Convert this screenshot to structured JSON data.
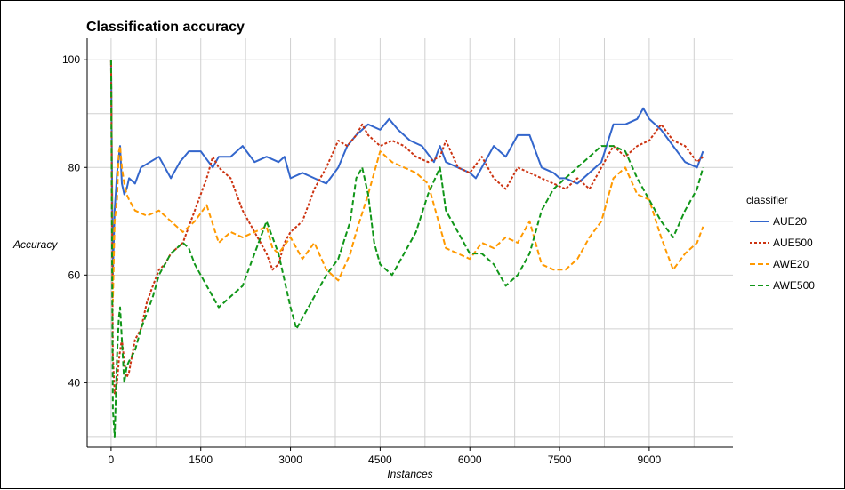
{
  "chart_data": {
    "type": "line",
    "title": "Classification accuracy",
    "xlabel": "Instances",
    "ylabel": "Accuracy",
    "xlim": [
      -400,
      10400
    ],
    "ylim": [
      28,
      104
    ],
    "x_ticks": [
      0,
      1500,
      3000,
      4500,
      6000,
      7500,
      9000
    ],
    "x_tick_labels": [
      "0",
      "1500",
      "3000",
      "4500",
      "6000",
      "7500",
      "9000"
    ],
    "y_ticks": [
      40,
      60,
      80,
      100
    ],
    "y_tick_labels": [
      "40",
      "60",
      "80",
      "100"
    ],
    "grid": true,
    "legend_title": "classifier",
    "legend_position": "right",
    "series": [
      {
        "name": "AUE20",
        "color": "#3366cc",
        "dash": "solid",
        "x": [
          0,
          30,
          60,
          100,
          130,
          150,
          180,
          220,
          260,
          300,
          400,
          500,
          650,
          800,
          1000,
          1150,
          1300,
          1500,
          1700,
          1800,
          2000,
          2200,
          2400,
          2600,
          2800,
          2900,
          3000,
          3200,
          3400,
          3600,
          3800,
          3950,
          4100,
          4300,
          4500,
          4650,
          4800,
          5000,
          5200,
          5400,
          5500,
          5600,
          5800,
          6000,
          6100,
          6200,
          6400,
          6600,
          6800,
          7000,
          7200,
          7400,
          7500,
          7600,
          7800,
          8000,
          8200,
          8400,
          8600,
          8800,
          8900,
          9000,
          9200,
          9400,
          9600,
          9800,
          9900
        ],
        "y": [
          100,
          60,
          72,
          79,
          82,
          84,
          77,
          75,
          76,
          78,
          77,
          80,
          81,
          82,
          78,
          81,
          83,
          83,
          80,
          82,
          82,
          84,
          81,
          82,
          81,
          82,
          78,
          79,
          78,
          77,
          80,
          84,
          86,
          88,
          87,
          89,
          87,
          85,
          84,
          81,
          84,
          81,
          80,
          79,
          78,
          80,
          84,
          82,
          86,
          86,
          80,
          79,
          78,
          78,
          77,
          79,
          81,
          88,
          88,
          89,
          91,
          89,
          87,
          84,
          81,
          80,
          83
        ]
      },
      {
        "name": "AUE500",
        "color": "#cc3311",
        "dash": "dotted",
        "x": [
          0,
          30,
          60,
          100,
          130,
          150,
          180,
          220,
          260,
          300,
          400,
          500,
          600,
          700,
          800,
          900,
          1000,
          1200,
          1400,
          1600,
          1700,
          1800,
          2000,
          2200,
          2400,
          2600,
          2700,
          2800,
          2900,
          3000,
          3200,
          3400,
          3600,
          3800,
          3950,
          4100,
          4200,
          4300,
          4400,
          4500,
          4700,
          4900,
          5100,
          5300,
          5500,
          5600,
          5800,
          6000,
          6200,
          6400,
          6600,
          6800,
          7000,
          7200,
          7400,
          7600,
          7800,
          8000,
          8200,
          8400,
          8600,
          8800,
          9000,
          9200,
          9400,
          9600,
          9800,
          9900
        ],
        "y": [
          100,
          45,
          38,
          40,
          44,
          46,
          48,
          44,
          41,
          42,
          48,
          50,
          55,
          58,
          61,
          62,
          64,
          66,
          72,
          78,
          82,
          80,
          78,
          72,
          68,
          64,
          61,
          62,
          66,
          68,
          70,
          76,
          80,
          85,
          84,
          86,
          88,
          86,
          85,
          84,
          85,
          84,
          82,
          81,
          82,
          85,
          80,
          79,
          82,
          78,
          76,
          80,
          79,
          78,
          77,
          76,
          78,
          76,
          80,
          84,
          82,
          84,
          85,
          88,
          85,
          84,
          81,
          82
        ]
      },
      {
        "name": "AWE20",
        "color": "#ff9900",
        "dash": "dashed",
        "x": [
          0,
          30,
          60,
          100,
          130,
          150,
          180,
          220,
          260,
          300,
          400,
          600,
          800,
          1000,
          1200,
          1400,
          1600,
          1800,
          2000,
          2200,
          2400,
          2600,
          2700,
          2800,
          3000,
          3200,
          3400,
          3600,
          3800,
          4000,
          4100,
          4300,
          4500,
          4700,
          4900,
          5100,
          5300,
          5500,
          5600,
          5800,
          6000,
          6200,
          6400,
          6600,
          6800,
          7000,
          7200,
          7400,
          7600,
          7800,
          8000,
          8200,
          8400,
          8600,
          8800,
          9000,
          9200,
          9400,
          9600,
          9800,
          9900
        ],
        "y": [
          100,
          55,
          70,
          74,
          83,
          84,
          80,
          77,
          75,
          74,
          72,
          71,
          72,
          70,
          68,
          70,
          73,
          66,
          68,
          67,
          68,
          69,
          65,
          64,
          67,
          63,
          66,
          61,
          59,
          64,
          68,
          75,
          83,
          81,
          80,
          79,
          77,
          69,
          65,
          64,
          63,
          66,
          65,
          67,
          66,
          70,
          62,
          61,
          61,
          63,
          67,
          70,
          78,
          80,
          75,
          74,
          67,
          61,
          64,
          66,
          69
        ]
      },
      {
        "name": "AWE500",
        "color": "#109618",
        "dash": "dashed",
        "x": [
          0,
          30,
          60,
          100,
          130,
          150,
          180,
          220,
          260,
          300,
          400,
          500,
          600,
          700,
          800,
          900,
          1000,
          1100,
          1200,
          1300,
          1400,
          1600,
          1800,
          2000,
          2200,
          2400,
          2600,
          2800,
          3000,
          3100,
          3200,
          3400,
          3600,
          3800,
          4000,
          4100,
          4200,
          4300,
          4400,
          4500,
          4700,
          4900,
          5100,
          5300,
          5500,
          5600,
          5800,
          6000,
          6200,
          6400,
          6600,
          6800,
          7000,
          7200,
          7400,
          7600,
          7800,
          8000,
          8200,
          8400,
          8600,
          8800,
          9000,
          9200,
          9400,
          9600,
          9800,
          9900
        ],
        "y": [
          100,
          35,
          30,
          45,
          52,
          54,
          48,
          40,
          43,
          44,
          46,
          50,
          53,
          56,
          60,
          62,
          64,
          65,
          66,
          65,
          62,
          58,
          54,
          56,
          58,
          64,
          70,
          64,
          54,
          50,
          52,
          56,
          60,
          63,
          70,
          78,
          80,
          75,
          66,
          62,
          60,
          64,
          68,
          75,
          80,
          72,
          68,
          64,
          64,
          62,
          58,
          60,
          64,
          72,
          76,
          78,
          80,
          82,
          84,
          84,
          83,
          78,
          74,
          70,
          67,
          72,
          76,
          80
        ]
      }
    ]
  }
}
